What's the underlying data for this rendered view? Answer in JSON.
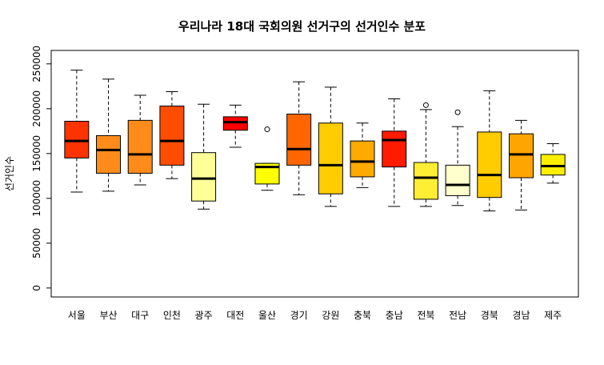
{
  "chart_data": {
    "type": "boxplot",
    "title": "우리나라 18대 국회의원 선거구의 선거인수 분포",
    "xlabel": "",
    "ylabel": "선거인수",
    "ylim": [
      -10000,
      265000
    ],
    "yticks": [
      0,
      50000,
      100000,
      150000,
      200000,
      250000
    ],
    "grid": false,
    "legend": "none",
    "categories": [
      "서울",
      "부산",
      "대구",
      "인천",
      "광주",
      "대전",
      "울산",
      "경기",
      "강원",
      "충북",
      "충남",
      "전북",
      "전남",
      "경북",
      "경남",
      "제주"
    ],
    "boxes": [
      {
        "min": 107000,
        "q1": 145000,
        "median": 164000,
        "q3": 186000,
        "max": 243000,
        "outliers": [],
        "color": "#FF3300"
      },
      {
        "min": 108000,
        "q1": 128000,
        "median": 154000,
        "q3": 170000,
        "max": 233000,
        "outliers": [],
        "color": "#FF8C1A"
      },
      {
        "min": 115000,
        "q1": 128000,
        "median": 149000,
        "q3": 187000,
        "max": 215000,
        "outliers": [],
        "color": "#FF8C1A"
      },
      {
        "min": 122000,
        "q1": 137000,
        "median": 164000,
        "q3": 203000,
        "max": 219000,
        "outliers": [],
        "color": "#FF4D00"
      },
      {
        "min": 88000,
        "q1": 97000,
        "median": 122000,
        "q3": 151000,
        "max": 205000,
        "outliers": [],
        "color": "#FFFF99"
      },
      {
        "min": 157000,
        "q1": 176000,
        "median": 185000,
        "q3": 191000,
        "max": 204000,
        "outliers": [],
        "color": "#FF0000"
      },
      {
        "min": 109000,
        "q1": 116000,
        "median": 135000,
        "q3": 139000,
        "max": 139000,
        "outliers": [
          177000
        ],
        "color": "#FFFF00"
      },
      {
        "min": 104000,
        "q1": 137000,
        "median": 155000,
        "q3": 194000,
        "max": 230000,
        "outliers": [],
        "color": "#FF6600"
      },
      {
        "min": 91000,
        "q1": 105000,
        "median": 137000,
        "q3": 184000,
        "max": 224000,
        "outliers": [],
        "color": "#FFCC00"
      },
      {
        "min": 112000,
        "q1": 124000,
        "median": 141000,
        "q3": 164000,
        "max": 184000,
        "outliers": [],
        "color": "#FFAA00"
      },
      {
        "min": 91000,
        "q1": 135000,
        "median": 165000,
        "q3": 175000,
        "max": 211000,
        "outliers": [],
        "color": "#FF1A00"
      },
      {
        "min": 91000,
        "q1": 99000,
        "median": 123000,
        "q3": 140000,
        "max": 199000,
        "outliers": [
          204000
        ],
        "color": "#FFEE33"
      },
      {
        "min": 92000,
        "q1": 103000,
        "median": 115000,
        "q3": 137000,
        "max": 180000,
        "outliers": [
          196000
        ],
        "color": "#FFFFCC"
      },
      {
        "min": 86000,
        "q1": 101000,
        "median": 126000,
        "q3": 174000,
        "max": 220000,
        "outliers": [],
        "color": "#FFCC00"
      },
      {
        "min": 87000,
        "q1": 123000,
        "median": 149000,
        "q3": 172000,
        "max": 187000,
        "outliers": [],
        "color": "#FFA500"
      },
      {
        "min": 117000,
        "q1": 126000,
        "median": 136000,
        "q3": 149000,
        "max": 161000,
        "outliers": [],
        "color": "#FFEE00"
      }
    ]
  }
}
